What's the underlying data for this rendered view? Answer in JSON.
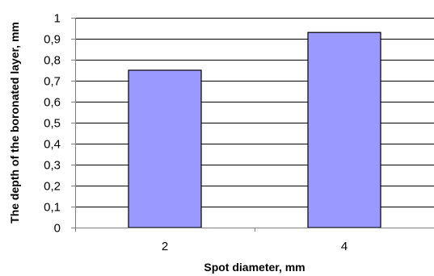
{
  "chart_data": {
    "type": "bar",
    "categories": [
      "2",
      "4"
    ],
    "values": [
      0.75,
      0.93
    ],
    "title": "",
    "xlabel": "Spot diameter, mm",
    "ylabel": "The depth of the boronated layer, mm",
    "ylim": [
      0,
      1
    ],
    "yticks": [
      0,
      0.1,
      0.2,
      0.3,
      0.4,
      0.5,
      0.6,
      0.7,
      0.8,
      0.9,
      1
    ],
    "ytick_labels": [
      "0",
      "0,1",
      "0,2",
      "0,3",
      "0,4",
      "0,5",
      "0,6",
      "0,7",
      "0,8",
      "0,9",
      "1"
    ],
    "grid": true,
    "legend": "none",
    "colors": {
      "bar_fill": "#9999ff",
      "bar_stroke": "#000000",
      "grid": "#000000",
      "axis": "#808080"
    }
  }
}
